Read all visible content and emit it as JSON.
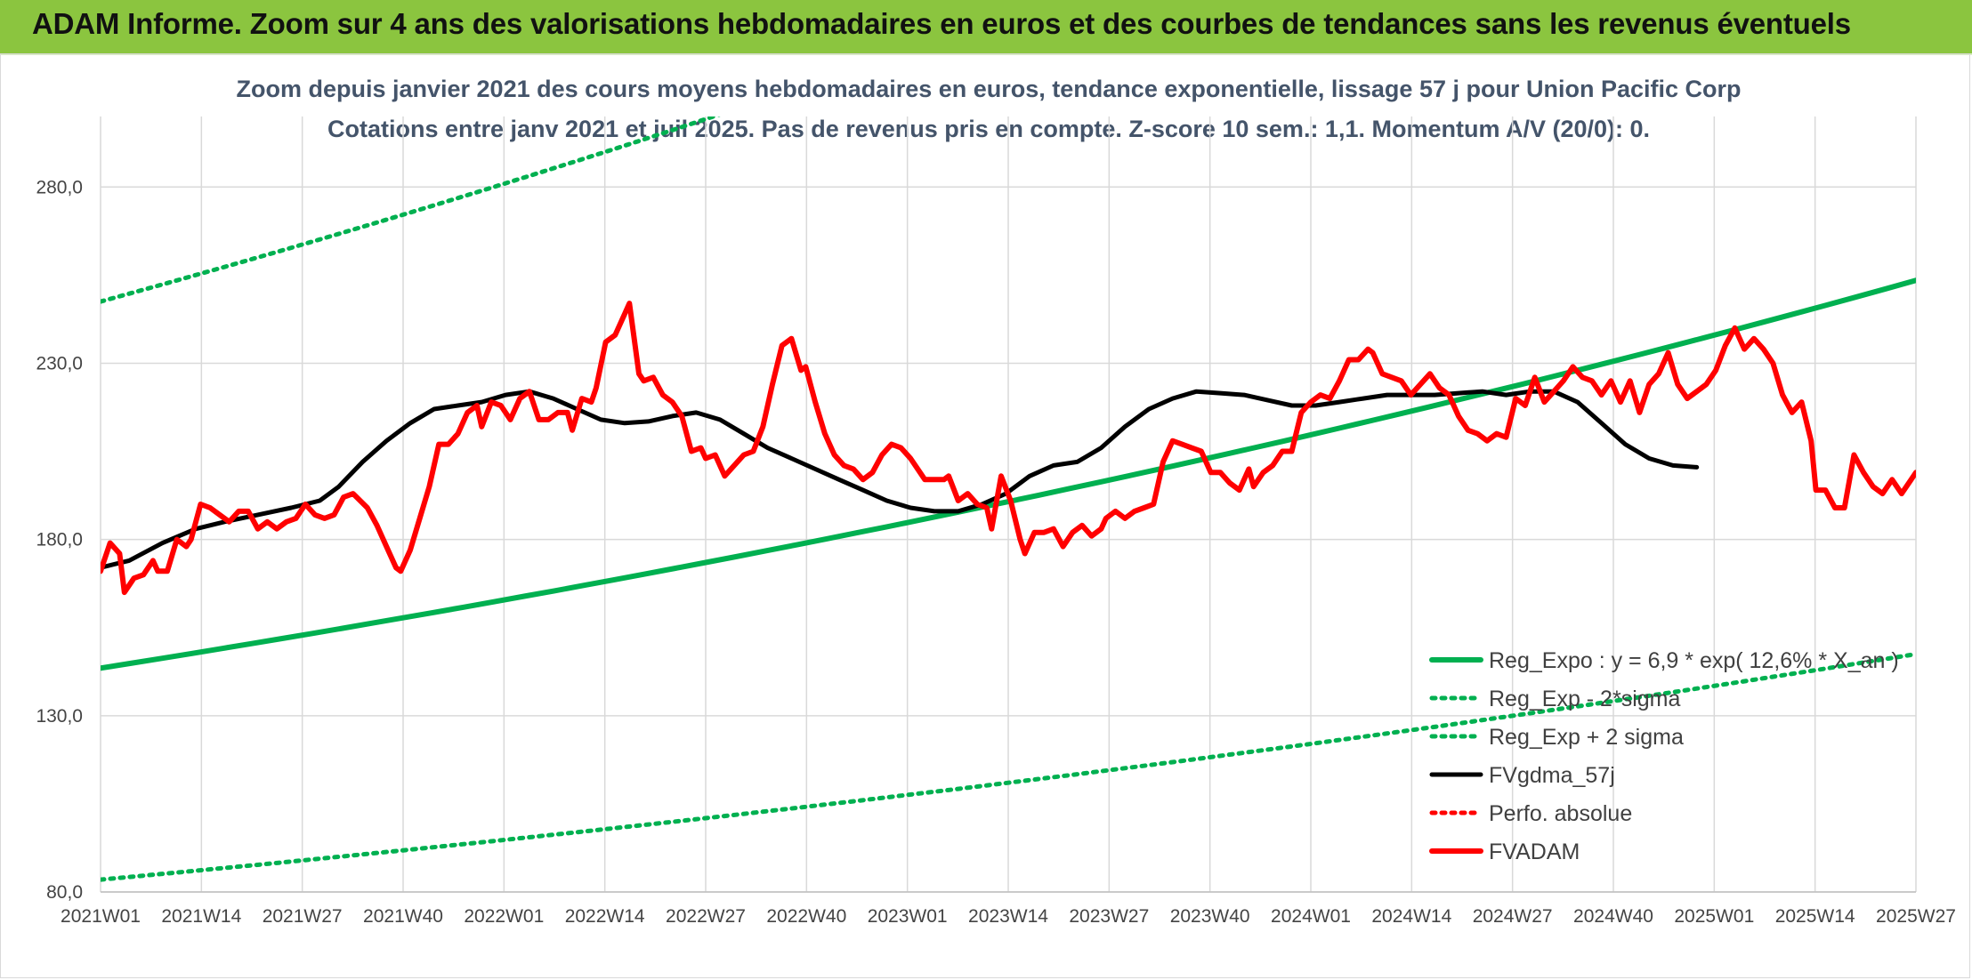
{
  "header": {
    "title": "ADAM Informe. Zoom sur 4 ans des valorisations hebdomadaires en euros et des courbes de tendances sans les revenus éventuels"
  },
  "chart_data": {
    "type": "line",
    "title": "Zoom depuis janvier 2021 des cours moyens hebdomadaires en euros, tendance exponentielle, lissage 57 j pour Union Pacific Corp",
    "subtitle": "Cotations entre janv 2021 et juil 2025. Pas de revenus pris en compte. Z-score 10 sem.: 1,1. Momentum A/V (20/0): 0.",
    "xlabel": "",
    "ylabel": "",
    "ylim": [
      80,
      300
    ],
    "yticks": [
      "80,0",
      "130,0",
      "180,0",
      "230,0",
      "280,0"
    ],
    "xticks": [
      "2021W01",
      "2021W14",
      "2021W27",
      "2021W40",
      "2022W01",
      "2022W14",
      "2022W27",
      "2022W40",
      "2023W01",
      "2023W14",
      "2023W27",
      "2023W40",
      "2024W01",
      "2024W14",
      "2024W27",
      "2024W40",
      "2025W01",
      "2025W14",
      "2025W27"
    ],
    "grid": "vertical and horizontal",
    "legend_position": "bottom-right",
    "series": [
      {
        "name": "Reg_Expo : y = 6,9 * exp( 12,6% *  X_an )",
        "color": "#00b050",
        "style": "solid-thick",
        "kind": "exp",
        "start": 143.5,
        "end": 253.5
      },
      {
        "name": "Reg_Exp - 2*sigma",
        "color": "#00b050",
        "style": "dotted",
        "kind": "exp",
        "start": 83.5,
        "end": 147.5
      },
      {
        "name": "Reg_Exp + 2 sigma",
        "color": "#00b050",
        "style": "dotted",
        "kind": "exp",
        "start": 247.5,
        "end": 437.5
      },
      {
        "name": "FVgdma_57j",
        "color": "#000000",
        "style": "solid",
        "kind": "points",
        "points": [
          [
            0,
            172
          ],
          [
            6,
            174
          ],
          [
            13,
            179
          ],
          [
            20,
            183
          ],
          [
            26,
            185
          ],
          [
            33,
            187
          ],
          [
            40,
            189
          ],
          [
            46,
            191
          ],
          [
            50,
            195
          ],
          [
            55,
            202
          ],
          [
            60,
            208
          ],
          [
            65,
            213
          ],
          [
            70,
            217
          ],
          [
            75,
            218
          ],
          [
            80,
            219
          ],
          [
            85,
            221
          ],
          [
            90,
            222
          ],
          [
            95,
            220
          ],
          [
            100,
            217
          ],
          [
            105,
            214
          ],
          [
            110,
            213
          ],
          [
            115,
            213.5
          ],
          [
            120,
            215
          ],
          [
            125,
            216
          ],
          [
            130,
            214
          ],
          [
            135,
            210
          ],
          [
            140,
            206
          ],
          [
            145,
            203
          ],
          [
            150,
            200
          ],
          [
            155,
            197
          ],
          [
            160,
            194
          ],
          [
            165,
            191
          ],
          [
            170,
            189
          ],
          [
            175,
            188
          ],
          [
            180,
            188
          ],
          [
            185,
            190
          ],
          [
            190,
            193
          ],
          [
            195,
            198
          ],
          [
            200,
            201
          ],
          [
            205,
            202
          ],
          [
            210,
            206
          ],
          [
            215,
            212
          ],
          [
            220,
            217
          ],
          [
            225,
            220
          ],
          [
            230,
            222
          ],
          [
            235,
            221.5
          ],
          [
            240,
            221
          ],
          [
            245,
            219.5
          ],
          [
            250,
            218
          ],
          [
            255,
            218
          ],
          [
            260,
            219
          ],
          [
            265,
            220
          ],
          [
            270,
            221
          ],
          [
            275,
            221
          ],
          [
            280,
            221
          ],
          [
            285,
            221.5
          ],
          [
            290,
            222
          ],
          [
            295,
            221
          ],
          [
            300,
            222
          ],
          [
            305,
            222
          ],
          [
            310,
            219
          ],
          [
            315,
            213
          ],
          [
            320,
            207
          ],
          [
            325,
            203
          ],
          [
            330,
            201
          ],
          [
            335,
            200.5
          ]
        ]
      },
      {
        "name": "Perfo. absolue",
        "color": "#ff0000",
        "style": "dotted",
        "kind": "none"
      },
      {
        "name": "FVADAM",
        "color": "#ff0000",
        "style": "solid-thick",
        "kind": "points",
        "points": [
          [
            0,
            171
          ],
          [
            2,
            179
          ],
          [
            4,
            176
          ],
          [
            5,
            165
          ],
          [
            7,
            169
          ],
          [
            9,
            170
          ],
          [
            11,
            174
          ],
          [
            12,
            171
          ],
          [
            14,
            171
          ],
          [
            16,
            180
          ],
          [
            18,
            178
          ],
          [
            19,
            180
          ],
          [
            21,
            190
          ],
          [
            23,
            189
          ],
          [
            25,
            187
          ],
          [
            27,
            185
          ],
          [
            29,
            188
          ],
          [
            31,
            188
          ],
          [
            33,
            183
          ],
          [
            35,
            185
          ],
          [
            37,
            183
          ],
          [
            39,
            185
          ],
          [
            41,
            186
          ],
          [
            43,
            190
          ],
          [
            45,
            187
          ],
          [
            47,
            186
          ],
          [
            49,
            187
          ],
          [
            51,
            192
          ],
          [
            53,
            193
          ],
          [
            56,
            189
          ],
          [
            58,
            184
          ],
          [
            60,
            178
          ],
          [
            62,
            172
          ],
          [
            63,
            171
          ],
          [
            65,
            177
          ],
          [
            67,
            186
          ],
          [
            69,
            195
          ],
          [
            71,
            207
          ],
          [
            73,
            207
          ],
          [
            75,
            210
          ],
          [
            77,
            216
          ],
          [
            79,
            218
          ],
          [
            80,
            212
          ],
          [
            82,
            219
          ],
          [
            84,
            218
          ],
          [
            86,
            214
          ],
          [
            88,
            220
          ],
          [
            90,
            222
          ],
          [
            92,
            214
          ],
          [
            94,
            214
          ],
          [
            96,
            216
          ],
          [
            98,
            216
          ],
          [
            99,
            211
          ],
          [
            101,
            220
          ],
          [
            103,
            219
          ],
          [
            104,
            223
          ],
          [
            106,
            236
          ],
          [
            108,
            238
          ],
          [
            110,
            244
          ],
          [
            111,
            247
          ],
          [
            113,
            227
          ],
          [
            114,
            225
          ],
          [
            116,
            226
          ],
          [
            118,
            221
          ],
          [
            120,
            219
          ],
          [
            122,
            215
          ],
          [
            124,
            205
          ],
          [
            126,
            206
          ],
          [
            127,
            203
          ],
          [
            129,
            204
          ],
          [
            131,
            198
          ],
          [
            133,
            201
          ],
          [
            135,
            204
          ],
          [
            137,
            205
          ],
          [
            139,
            212
          ],
          [
            141,
            224
          ],
          [
            143,
            235
          ],
          [
            145,
            237
          ],
          [
            147,
            228
          ],
          [
            148,
            229
          ],
          [
            150,
            219
          ],
          [
            152,
            210
          ],
          [
            154,
            204
          ],
          [
            156,
            201
          ],
          [
            158,
            200
          ],
          [
            160,
            197
          ],
          [
            162,
            199
          ],
          [
            164,
            204
          ],
          [
            166,
            207
          ],
          [
            168,
            206
          ],
          [
            170,
            203
          ],
          [
            172,
            199
          ],
          [
            173,
            197
          ],
          [
            175,
            197
          ],
          [
            177,
            197
          ],
          [
            178,
            198
          ],
          [
            180,
            191
          ],
          [
            182,
            193
          ],
          [
            184,
            190
          ],
          [
            186,
            189
          ],
          [
            187,
            183
          ],
          [
            189,
            198
          ],
          [
            191,
            191
          ],
          [
            193,
            180
          ],
          [
            194,
            176
          ],
          [
            196,
            182
          ],
          [
            198,
            182
          ],
          [
            200,
            183
          ],
          [
            202,
            178
          ],
          [
            204,
            182
          ],
          [
            206,
            184
          ],
          [
            208,
            181
          ],
          [
            210,
            183
          ],
          [
            211,
            186
          ],
          [
            213,
            188
          ],
          [
            215,
            186
          ],
          [
            217,
            188
          ],
          [
            219,
            189
          ],
          [
            221,
            190
          ],
          [
            223,
            202
          ],
          [
            225,
            208
          ],
          [
            227,
            207
          ],
          [
            229,
            206
          ],
          [
            231,
            205
          ],
          [
            233,
            199
          ],
          [
            235,
            199
          ],
          [
            237,
            196
          ],
          [
            239,
            194
          ],
          [
            241,
            200
          ],
          [
            242,
            195
          ],
          [
            244,
            199
          ],
          [
            246,
            201
          ],
          [
            248,
            205
          ],
          [
            250,
            205
          ],
          [
            252,
            216
          ],
          [
            254,
            219
          ],
          [
            256,
            221
          ],
          [
            258,
            220
          ],
          [
            260,
            225
          ],
          [
            262,
            231
          ],
          [
            264,
            231
          ],
          [
            266,
            234
          ],
          [
            267,
            233
          ],
          [
            269,
            227
          ],
          [
            271,
            226
          ],
          [
            273,
            225
          ],
          [
            275,
            221
          ],
          [
            277,
            224
          ],
          [
            279,
            227
          ],
          [
            281,
            223
          ],
          [
            283,
            221
          ],
          [
            285,
            215
          ],
          [
            287,
            211
          ],
          [
            289,
            210
          ],
          [
            291,
            208
          ],
          [
            293,
            210
          ],
          [
            295,
            209
          ],
          [
            297,
            220
          ],
          [
            299,
            218
          ],
          [
            301,
            226
          ],
          [
            303,
            219
          ],
          [
            305,
            222
          ],
          [
            307,
            225
          ],
          [
            309,
            229
          ],
          [
            311,
            226
          ],
          [
            313,
            225
          ],
          [
            315,
            221
          ],
          [
            317,
            225
          ],
          [
            319,
            219
          ],
          [
            321,
            225
          ],
          [
            323,
            216
          ],
          [
            325,
            224
          ],
          [
            327,
            227
          ],
          [
            329,
            233
          ],
          [
            331,
            224
          ],
          [
            333,
            220
          ],
          [
            335,
            222
          ],
          [
            337,
            224
          ],
          [
            339,
            228
          ],
          [
            341,
            235
          ],
          [
            343,
            240
          ],
          [
            345,
            234
          ],
          [
            347,
            237
          ],
          [
            349,
            234
          ],
          [
            351,
            230
          ],
          [
            353,
            221
          ],
          [
            355,
            216
          ],
          [
            357,
            219
          ],
          [
            359,
            208
          ],
          [
            360,
            194
          ],
          [
            362,
            194
          ],
          [
            364,
            189
          ],
          [
            366,
            189
          ],
          [
            368,
            204
          ],
          [
            370,
            199
          ],
          [
            372,
            195
          ],
          [
            374,
            193
          ],
          [
            376,
            197
          ],
          [
            378,
            193
          ],
          [
            380,
            197
          ],
          [
            381,
            199
          ]
        ]
      }
    ]
  }
}
